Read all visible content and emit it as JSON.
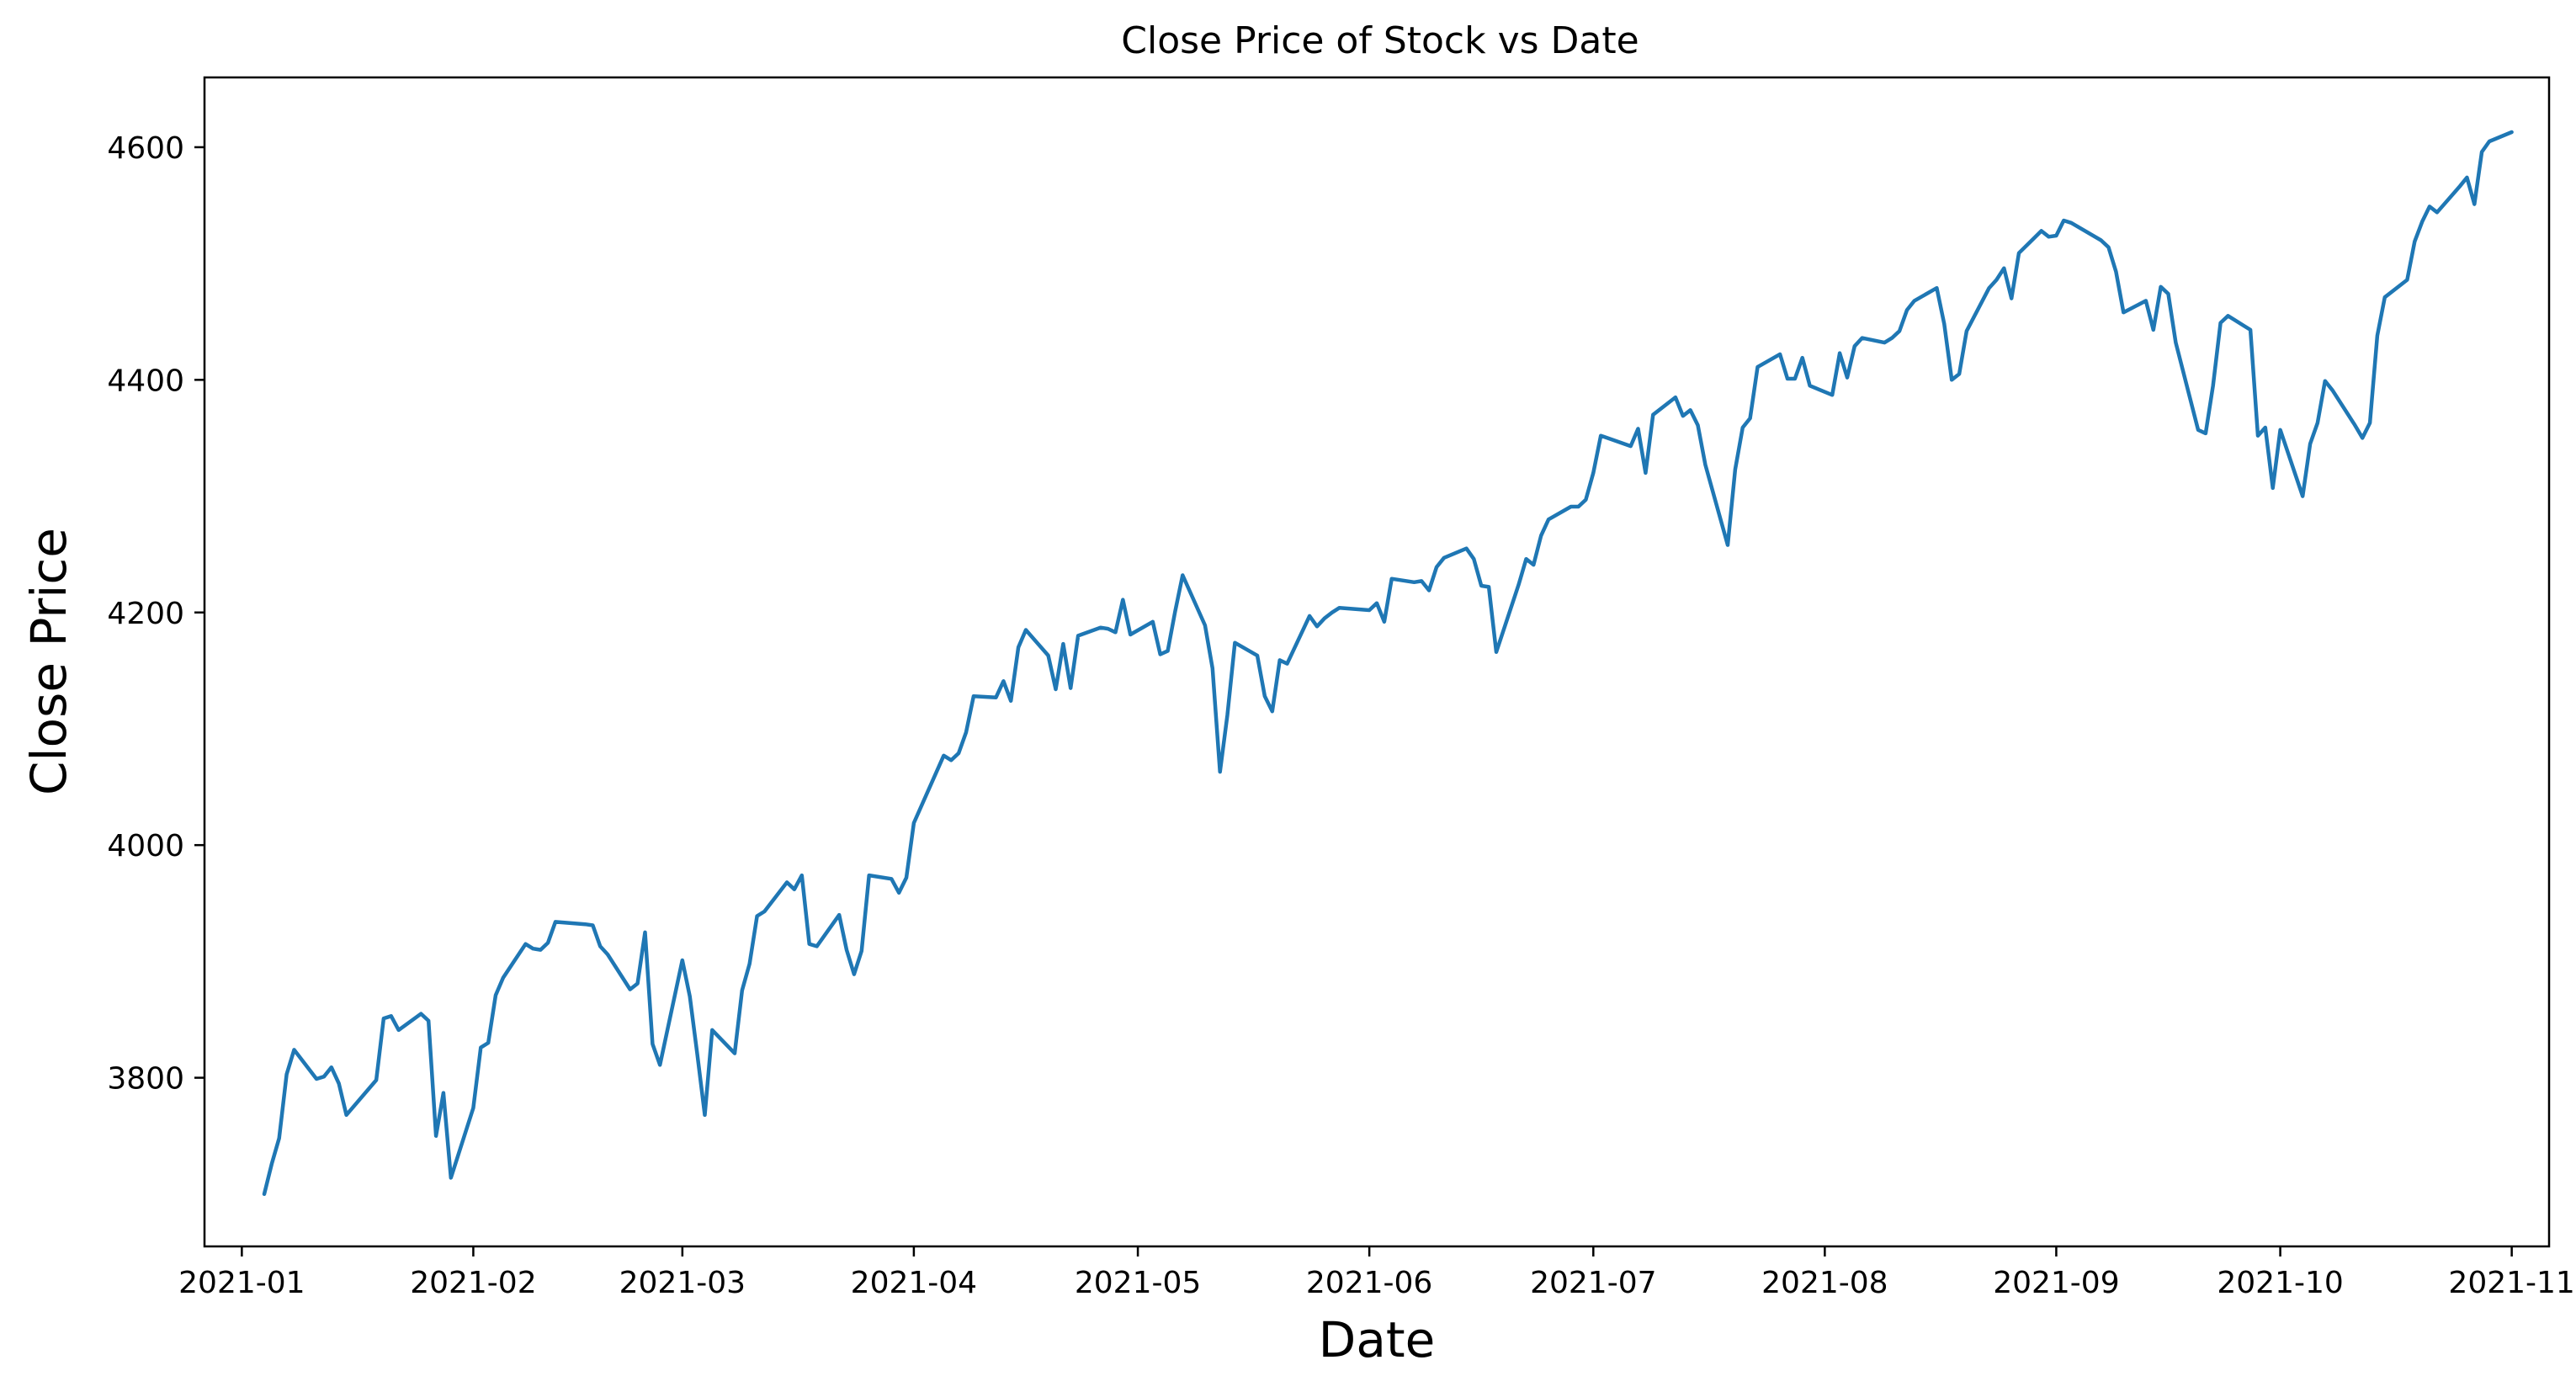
{
  "chart_data": {
    "type": "line",
    "title": "Close Price of Stock vs Date",
    "xlabel": "Date",
    "ylabel": "Close Price",
    "x_ticks": [
      "2021-01-01",
      "2021-02-01",
      "2021-03-01",
      "2021-04-01",
      "2021-05-01",
      "2021-06-01",
      "2021-07-01",
      "2021-08-01",
      "2021-09-01",
      "2021-10-01",
      "2021-11-01"
    ],
    "y_ticks": [
      3800,
      4000,
      4200,
      4400,
      4600
    ],
    "xlim": [
      "2020-12-27",
      "2021-11-06"
    ],
    "ylim": [
      3655,
      4660
    ],
    "grid": false,
    "color": "#1f77b4",
    "series": [
      {
        "points": [
          [
            "2021-01-04",
            3700
          ],
          [
            "2021-01-05",
            3726
          ],
          [
            "2021-01-06",
            3748
          ],
          [
            "2021-01-07",
            3803
          ],
          [
            "2021-01-08",
            3824
          ],
          [
            "2021-01-11",
            3799
          ],
          [
            "2021-01-12",
            3801
          ],
          [
            "2021-01-13",
            3809
          ],
          [
            "2021-01-14",
            3795
          ],
          [
            "2021-01-15",
            3768
          ],
          [
            "2021-01-19",
            3798
          ],
          [
            "2021-01-20",
            3851
          ],
          [
            "2021-01-21",
            3853
          ],
          [
            "2021-01-22",
            3841
          ],
          [
            "2021-01-25",
            3855
          ],
          [
            "2021-01-26",
            3849
          ],
          [
            "2021-01-27",
            3750
          ],
          [
            "2021-01-28",
            3787
          ],
          [
            "2021-01-29",
            3714
          ],
          [
            "2021-02-01",
            3774
          ],
          [
            "2021-02-02",
            3826
          ],
          [
            "2021-02-03",
            3830
          ],
          [
            "2021-02-04",
            3871
          ],
          [
            "2021-02-05",
            3886
          ],
          [
            "2021-02-08",
            3915
          ],
          [
            "2021-02-09",
            3911
          ],
          [
            "2021-02-10",
            3910
          ],
          [
            "2021-02-11",
            3916
          ],
          [
            "2021-02-12",
            3934
          ],
          [
            "2021-02-16",
            3932
          ],
          [
            "2021-02-17",
            3931
          ],
          [
            "2021-02-18",
            3913
          ],
          [
            "2021-02-19",
            3906
          ],
          [
            "2021-02-22",
            3876
          ],
          [
            "2021-02-23",
            3881
          ],
          [
            "2021-02-24",
            3925
          ],
          [
            "2021-02-25",
            3829
          ],
          [
            "2021-02-26",
            3811
          ],
          [
            "2021-03-01",
            3901
          ],
          [
            "2021-03-02",
            3870
          ],
          [
            "2021-03-03",
            3820
          ],
          [
            "2021-03-04",
            3768
          ],
          [
            "2021-03-05",
            3841
          ],
          [
            "2021-03-08",
            3821
          ],
          [
            "2021-03-09",
            3875
          ],
          [
            "2021-03-10",
            3898
          ],
          [
            "2021-03-11",
            3939
          ],
          [
            "2021-03-12",
            3943
          ],
          [
            "2021-03-15",
            3968
          ],
          [
            "2021-03-16",
            3962
          ],
          [
            "2021-03-17",
            3974
          ],
          [
            "2021-03-18",
            3915
          ],
          [
            "2021-03-19",
            3913
          ],
          [
            "2021-03-22",
            3940
          ],
          [
            "2021-03-23",
            3910
          ],
          [
            "2021-03-24",
            3889
          ],
          [
            "2021-03-25",
            3909
          ],
          [
            "2021-03-26",
            3974
          ],
          [
            "2021-03-29",
            3971
          ],
          [
            "2021-03-30",
            3959
          ],
          [
            "2021-03-31",
            3972
          ],
          [
            "2021-04-01",
            4019
          ],
          [
            "2021-04-05",
            4077
          ],
          [
            "2021-04-06",
            4073
          ],
          [
            "2021-04-07",
            4079
          ],
          [
            "2021-04-08",
            4097
          ],
          [
            "2021-04-09",
            4128
          ],
          [
            "2021-04-12",
            4127
          ],
          [
            "2021-04-13",
            4141
          ],
          [
            "2021-04-14",
            4124
          ],
          [
            "2021-04-15",
            4170
          ],
          [
            "2021-04-16",
            4185
          ],
          [
            "2021-04-19",
            4163
          ],
          [
            "2021-04-20",
            4134
          ],
          [
            "2021-04-21",
            4173
          ],
          [
            "2021-04-22",
            4135
          ],
          [
            "2021-04-23",
            4180
          ],
          [
            "2021-04-26",
            4187
          ],
          [
            "2021-04-27",
            4186
          ],
          [
            "2021-04-28",
            4183
          ],
          [
            "2021-04-29",
            4211
          ],
          [
            "2021-04-30",
            4181
          ],
          [
            "2021-05-03",
            4192
          ],
          [
            "2021-05-04",
            4164
          ],
          [
            "2021-05-05",
            4167
          ],
          [
            "2021-05-06",
            4201
          ],
          [
            "2021-05-07",
            4232
          ],
          [
            "2021-05-10",
            4189
          ],
          [
            "2021-05-11",
            4152
          ],
          [
            "2021-05-12",
            4063
          ],
          [
            "2021-05-13",
            4112
          ],
          [
            "2021-05-14",
            4174
          ],
          [
            "2021-05-17",
            4163
          ],
          [
            "2021-05-18",
            4128
          ],
          [
            "2021-05-19",
            4115
          ],
          [
            "2021-05-20",
            4159
          ],
          [
            "2021-05-21",
            4156
          ],
          [
            "2021-05-24",
            4197
          ],
          [
            "2021-05-25",
            4188
          ],
          [
            "2021-05-26",
            4195
          ],
          [
            "2021-05-27",
            4200
          ],
          [
            "2021-05-28",
            4204
          ],
          [
            "2021-06-01",
            4202
          ],
          [
            "2021-06-02",
            4208
          ],
          [
            "2021-06-03",
            4192
          ],
          [
            "2021-06-04",
            4229
          ],
          [
            "2021-06-07",
            4226
          ],
          [
            "2021-06-08",
            4227
          ],
          [
            "2021-06-09",
            4219
          ],
          [
            "2021-06-10",
            4239
          ],
          [
            "2021-06-11",
            4247
          ],
          [
            "2021-06-14",
            4255
          ],
          [
            "2021-06-15",
            4246
          ],
          [
            "2021-06-16",
            4223
          ],
          [
            "2021-06-17",
            4222
          ],
          [
            "2021-06-18",
            4166
          ],
          [
            "2021-06-21",
            4224
          ],
          [
            "2021-06-22",
            4246
          ],
          [
            "2021-06-23",
            4241
          ],
          [
            "2021-06-24",
            4266
          ],
          [
            "2021-06-25",
            4280
          ],
          [
            "2021-06-28",
            4291
          ],
          [
            "2021-06-29",
            4291
          ],
          [
            "2021-06-30",
            4297
          ],
          [
            "2021-07-01",
            4320
          ],
          [
            "2021-07-02",
            4352
          ],
          [
            "2021-07-06",
            4343
          ],
          [
            "2021-07-07",
            4358
          ],
          [
            "2021-07-08",
            4320
          ],
          [
            "2021-07-09",
            4370
          ],
          [
            "2021-07-12",
            4385
          ],
          [
            "2021-07-13",
            4369
          ],
          [
            "2021-07-14",
            4374
          ],
          [
            "2021-07-15",
            4361
          ],
          [
            "2021-07-16",
            4327
          ],
          [
            "2021-07-19",
            4258
          ],
          [
            "2021-07-20",
            4323
          ],
          [
            "2021-07-21",
            4359
          ],
          [
            "2021-07-22",
            4367
          ],
          [
            "2021-07-23",
            4411
          ],
          [
            "2021-07-26",
            4422
          ],
          [
            "2021-07-27",
            4401
          ],
          [
            "2021-07-28",
            4401
          ],
          [
            "2021-07-29",
            4419
          ],
          [
            "2021-07-30",
            4395
          ],
          [
            "2021-08-02",
            4387
          ],
          [
            "2021-08-03",
            4423
          ],
          [
            "2021-08-04",
            4402
          ],
          [
            "2021-08-05",
            4429
          ],
          [
            "2021-08-06",
            4436
          ],
          [
            "2021-08-09",
            4432
          ],
          [
            "2021-08-10",
            4436
          ],
          [
            "2021-08-11",
            4442
          ],
          [
            "2021-08-12",
            4460
          ],
          [
            "2021-08-13",
            4468
          ],
          [
            "2021-08-16",
            4479
          ],
          [
            "2021-08-17",
            4448
          ],
          [
            "2021-08-18",
            4400
          ],
          [
            "2021-08-19",
            4405
          ],
          [
            "2021-08-20",
            4442
          ],
          [
            "2021-08-23",
            4479
          ],
          [
            "2021-08-24",
            4486
          ],
          [
            "2021-08-25",
            4496
          ],
          [
            "2021-08-26",
            4470
          ],
          [
            "2021-08-27",
            4509
          ],
          [
            "2021-08-30",
            4528
          ],
          [
            "2021-08-31",
            4523
          ],
          [
            "2021-09-01",
            4524
          ],
          [
            "2021-09-02",
            4537
          ],
          [
            "2021-09-03",
            4535
          ],
          [
            "2021-09-07",
            4520
          ],
          [
            "2021-09-08",
            4514
          ],
          [
            "2021-09-09",
            4493
          ],
          [
            "2021-09-10",
            4458
          ],
          [
            "2021-09-13",
            4468
          ],
          [
            "2021-09-14",
            4443
          ],
          [
            "2021-09-15",
            4480
          ],
          [
            "2021-09-16",
            4474
          ],
          [
            "2021-09-17",
            4432
          ],
          [
            "2021-09-20",
            4357
          ],
          [
            "2021-09-21",
            4354
          ],
          [
            "2021-09-22",
            4395
          ],
          [
            "2021-09-23",
            4449
          ],
          [
            "2021-09-24",
            4455
          ],
          [
            "2021-09-27",
            4443
          ],
          [
            "2021-09-28",
            4352
          ],
          [
            "2021-09-29",
            4359
          ],
          [
            "2021-09-30",
            4307
          ],
          [
            "2021-10-01",
            4357
          ],
          [
            "2021-10-04",
            4300
          ],
          [
            "2021-10-05",
            4345
          ],
          [
            "2021-10-06",
            4363
          ],
          [
            "2021-10-07",
            4399
          ],
          [
            "2021-10-08",
            4391
          ],
          [
            "2021-10-11",
            4361
          ],
          [
            "2021-10-12",
            4350
          ],
          [
            "2021-10-13",
            4363
          ],
          [
            "2021-10-14",
            4438
          ],
          [
            "2021-10-15",
            4471
          ],
          [
            "2021-10-18",
            4486
          ],
          [
            "2021-10-19",
            4519
          ],
          [
            "2021-10-20",
            4536
          ],
          [
            "2021-10-21",
            4549
          ],
          [
            "2021-10-22",
            4544
          ],
          [
            "2021-10-25",
            4566
          ],
          [
            "2021-10-26",
            4574
          ],
          [
            "2021-10-27",
            4551
          ],
          [
            "2021-10-28",
            4596
          ],
          [
            "2021-10-29",
            4605
          ],
          [
            "2021-11-01",
            4613
          ]
        ]
      }
    ]
  }
}
